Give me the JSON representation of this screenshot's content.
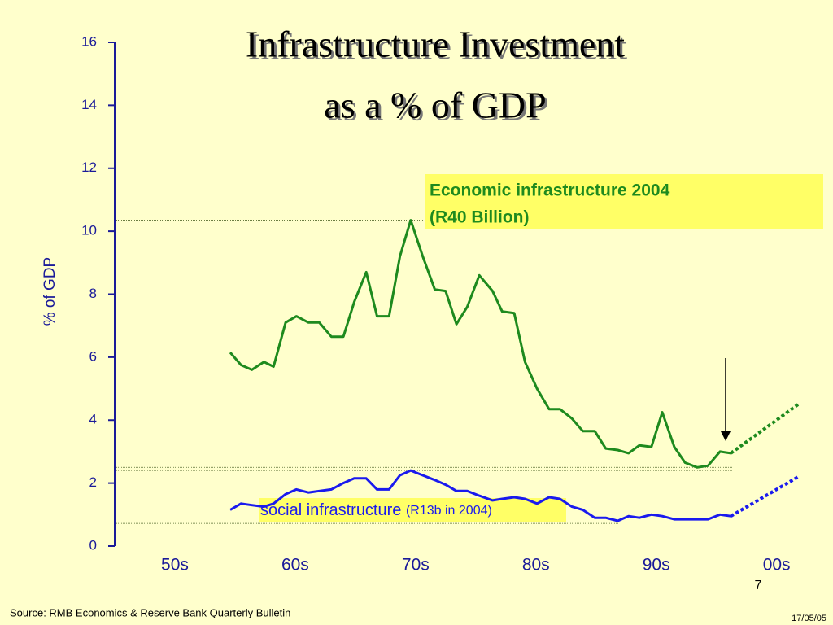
{
  "chart_data": {
    "type": "line",
    "title": [
      "Infrastructure Investment",
      "as a % of GDP"
    ],
    "y_label": "% of GDP",
    "xlim": [
      1945,
      2003
    ],
    "xticks": [
      {
        "value": 1950,
        "label": "50s"
      },
      {
        "value": 1960,
        "label": "60s"
      },
      {
        "value": 1970,
        "label": "70s"
      },
      {
        "value": 1980,
        "label": "80s"
      },
      {
        "value": 1990,
        "label": "90s"
      },
      {
        "value": 2000,
        "label": "00s"
      }
    ],
    "ylim": [
      0,
      16
    ],
    "yticks": [
      0,
      2,
      4,
      6,
      8,
      10,
      12,
      14,
      16
    ],
    "reference_lines": [
      10.35,
      2.5,
      2.4,
      0.72
    ],
    "series": [
      {
        "name": "Economic infrastructure",
        "color": "#1e8a1e",
        "style": "solid",
        "x": [
          1954.6,
          1955.5,
          1956.4,
          1957.4,
          1958.2,
          1959.2,
          1960.1,
          1961.1,
          1962.0,
          1963.0,
          1964.0,
          1964.9,
          1965.9,
          1966.8,
          1967.8,
          1968.7,
          1969.6,
          1970.6,
          1971.6,
          1972.5,
          1973.4,
          1974.3,
          1975.3,
          1976.4,
          1977.2,
          1978.2,
          1979.1,
          1980.1,
          1981.1,
          1982.0,
          1983.0,
          1983.9,
          1984.9,
          1985.8,
          1986.8,
          1987.7,
          1988.6,
          1989.6,
          1990.5,
          1991.5,
          1992.4,
          1993.4,
          1994.3,
          1995.3,
          1996.2
        ],
        "values": [
          6.15,
          5.75,
          5.6,
          5.85,
          5.7,
          7.1,
          7.3,
          7.1,
          7.1,
          6.65,
          6.65,
          7.75,
          8.7,
          7.3,
          7.3,
          9.2,
          10.35,
          9.2,
          8.15,
          8.1,
          7.05,
          7.6,
          8.6,
          8.1,
          7.45,
          7.4,
          5.85,
          5.0,
          4.35,
          4.35,
          4.05,
          3.65,
          3.65,
          3.1,
          3.05,
          2.95,
          3.2,
          3.15,
          4.25,
          3.15,
          2.65,
          2.5,
          2.55,
          3.0,
          2.95
        ]
      },
      {
        "name": "Social infrastructure",
        "color": "#1a1aee",
        "style": "solid",
        "x": [
          1954.6,
          1955.5,
          1956.4,
          1957.4,
          1958.2,
          1959.2,
          1960.1,
          1961.1,
          1962.0,
          1963.0,
          1964.0,
          1964.9,
          1965.9,
          1966.8,
          1967.8,
          1968.7,
          1969.6,
          1970.6,
          1971.6,
          1972.5,
          1973.4,
          1974.3,
          1975.3,
          1976.4,
          1977.2,
          1978.2,
          1979.1,
          1980.1,
          1981.1,
          1982.0,
          1983.0,
          1983.9,
          1984.9,
          1985.8,
          1986.8,
          1987.7,
          1988.6,
          1989.6,
          1990.5,
          1991.5,
          1992.4,
          1993.4,
          1994.3,
          1995.3,
          1996.2
        ],
        "values": [
          1.15,
          1.35,
          1.3,
          1.25,
          1.35,
          1.65,
          1.8,
          1.7,
          1.75,
          1.8,
          2.0,
          2.15,
          2.15,
          1.8,
          1.8,
          2.25,
          2.4,
          2.25,
          2.1,
          1.95,
          1.75,
          1.75,
          1.6,
          1.45,
          1.5,
          1.55,
          1.5,
          1.35,
          1.55,
          1.5,
          1.25,
          1.15,
          0.9,
          0.9,
          0.8,
          0.95,
          0.9,
          1.0,
          0.95,
          0.85,
          0.85,
          0.85,
          0.85,
          1.0,
          0.95
        ]
      },
      {
        "name": "Economic projection",
        "color": "#1e8a1e",
        "style": "dotted",
        "x": [
          1996.2,
          2001.8
        ],
        "values": [
          2.95,
          4.5
        ]
      },
      {
        "name": "Social projection",
        "color": "#1a1aee",
        "style": "dotted",
        "x": [
          1996.2,
          2001.8
        ],
        "values": [
          0.95,
          2.2
        ]
      }
    ],
    "annotations": {
      "economic": [
        "Economic infrastructure 2004",
        "(R40 Billion)"
      ],
      "social": "social infrastructure",
      "social_note": "(R13b in 2004)"
    }
  },
  "footer": {
    "source": "Source: RMB Economics & Reserve Bank Quarterly Bulletin",
    "page": "7",
    "date": "17/05/05"
  }
}
